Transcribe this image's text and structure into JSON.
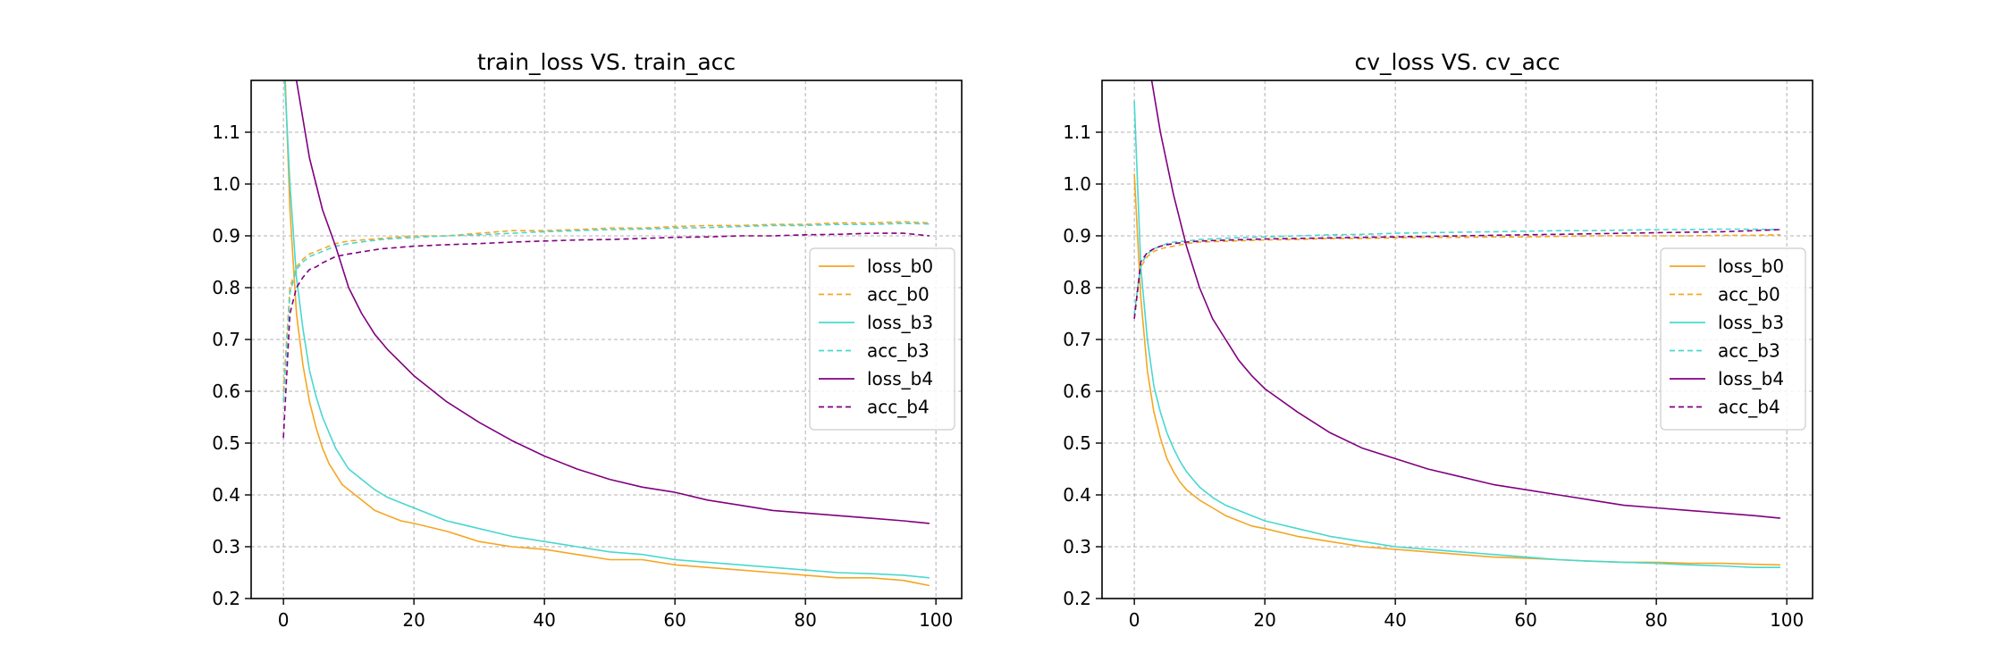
{
  "chart_data": [
    {
      "type": "line",
      "title": "train_loss VS. train_acc",
      "xlabel": "",
      "ylabel": "",
      "xlim": [
        -4.95,
        103.95
      ],
      "ylim": [
        0.2,
        1.2
      ],
      "xticks": [
        0,
        20,
        40,
        60,
        80,
        100
      ],
      "yticks": [
        0.2,
        0.3,
        0.4,
        0.5,
        0.6,
        0.7,
        0.8,
        0.9,
        1.0,
        1.1
      ],
      "xtick_labels": [
        "0",
        "20",
        "40",
        "60",
        "80",
        "100"
      ],
      "ytick_labels": [
        "0.2",
        "0.3",
        "0.4",
        "0.5",
        "0.6",
        "0.7",
        "0.8",
        "0.9",
        "1.0",
        "1.1"
      ],
      "grid": true,
      "legend_position": "center-right",
      "series": [
        {
          "name": "loss_b0",
          "color": "#f5a623",
          "style": "solid",
          "x": [
            0,
            1,
            2,
            3,
            4,
            5,
            6,
            7,
            8,
            9,
            10,
            12,
            14,
            16,
            18,
            20,
            25,
            30,
            35,
            40,
            45,
            50,
            55,
            60,
            65,
            70,
            75,
            80,
            85,
            90,
            95,
            99
          ],
          "values": [
            1.3,
            0.95,
            0.75,
            0.65,
            0.58,
            0.53,
            0.49,
            0.46,
            0.44,
            0.42,
            0.41,
            0.39,
            0.37,
            0.36,
            0.35,
            0.345,
            0.33,
            0.31,
            0.3,
            0.295,
            0.285,
            0.275,
            0.275,
            0.265,
            0.26,
            0.255,
            0.25,
            0.245,
            0.24,
            0.24,
            0.235,
            0.225
          ]
        },
        {
          "name": "acc_b0",
          "color": "#f5a623",
          "style": "dashed",
          "x": [
            0,
            1,
            2,
            3,
            4,
            5,
            6,
            8,
            10,
            15,
            20,
            25,
            30,
            35,
            40,
            45,
            50,
            55,
            60,
            65,
            70,
            75,
            80,
            85,
            90,
            95,
            99
          ],
          "values": [
            0.6,
            0.8,
            0.84,
            0.855,
            0.865,
            0.87,
            0.875,
            0.885,
            0.89,
            0.895,
            0.9,
            0.9,
            0.905,
            0.91,
            0.91,
            0.912,
            0.915,
            0.915,
            0.918,
            0.92,
            0.92,
            0.922,
            0.922,
            0.925,
            0.925,
            0.927,
            0.925
          ]
        },
        {
          "name": "loss_b3",
          "color": "#48d8cf",
          "style": "solid",
          "x": [
            0,
            1,
            2,
            3,
            4,
            5,
            6,
            7,
            8,
            9,
            10,
            12,
            14,
            16,
            18,
            20,
            25,
            30,
            35,
            40,
            45,
            50,
            55,
            60,
            65,
            70,
            75,
            80,
            85,
            90,
            95,
            99
          ],
          "values": [
            1.25,
            1.0,
            0.82,
            0.72,
            0.64,
            0.59,
            0.55,
            0.52,
            0.49,
            0.47,
            0.45,
            0.43,
            0.41,
            0.395,
            0.385,
            0.375,
            0.35,
            0.335,
            0.32,
            0.31,
            0.3,
            0.29,
            0.285,
            0.275,
            0.27,
            0.265,
            0.26,
            0.255,
            0.25,
            0.248,
            0.245,
            0.24
          ]
        },
        {
          "name": "acc_b3",
          "color": "#48d8cf",
          "style": "dashed",
          "x": [
            0,
            1,
            2,
            3,
            4,
            5,
            6,
            8,
            10,
            15,
            20,
            25,
            30,
            35,
            40,
            45,
            50,
            55,
            60,
            65,
            70,
            75,
            80,
            85,
            90,
            95,
            99
          ],
          "values": [
            0.58,
            0.79,
            0.835,
            0.85,
            0.86,
            0.865,
            0.87,
            0.88,
            0.885,
            0.893,
            0.897,
            0.9,
            0.902,
            0.905,
            0.908,
            0.91,
            0.912,
            0.913,
            0.915,
            0.916,
            0.918,
            0.92,
            0.92,
            0.922,
            0.922,
            0.924,
            0.923
          ]
        },
        {
          "name": "loss_b4",
          "color": "#800080",
          "style": "solid",
          "x": [
            0,
            2,
            4,
            6,
            8,
            10,
            12,
            14,
            16,
            18,
            20,
            25,
            30,
            35,
            40,
            45,
            50,
            55,
            60,
            65,
            70,
            75,
            80,
            85,
            90,
            95,
            99
          ],
          "values": [
            1.35,
            1.2,
            1.05,
            0.95,
            0.88,
            0.8,
            0.75,
            0.71,
            0.68,
            0.655,
            0.63,
            0.58,
            0.54,
            0.505,
            0.475,
            0.45,
            0.43,
            0.415,
            0.405,
            0.39,
            0.38,
            0.37,
            0.365,
            0.36,
            0.355,
            0.35,
            0.345
          ]
        },
        {
          "name": "acc_b4",
          "color": "#800080",
          "style": "dashed",
          "x": [
            0,
            1,
            2,
            3,
            4,
            5,
            6,
            8,
            10,
            15,
            20,
            25,
            30,
            35,
            40,
            45,
            50,
            55,
            60,
            65,
            70,
            75,
            80,
            85,
            90,
            95,
            99
          ],
          "values": [
            0.51,
            0.75,
            0.8,
            0.82,
            0.835,
            0.84,
            0.848,
            0.86,
            0.865,
            0.875,
            0.88,
            0.883,
            0.885,
            0.888,
            0.89,
            0.892,
            0.893,
            0.895,
            0.897,
            0.898,
            0.9,
            0.9,
            0.902,
            0.903,
            0.905,
            0.905,
            0.9
          ]
        }
      ]
    },
    {
      "type": "line",
      "title": "cv_loss VS. cv_acc",
      "xlabel": "",
      "ylabel": "",
      "xlim": [
        -4.95,
        103.95
      ],
      "ylim": [
        0.2,
        1.2
      ],
      "xticks": [
        0,
        20,
        40,
        60,
        80,
        100
      ],
      "yticks": [
        0.2,
        0.3,
        0.4,
        0.5,
        0.6,
        0.7,
        0.8,
        0.9,
        1.0,
        1.1
      ],
      "xtick_labels": [
        "0",
        "20",
        "40",
        "60",
        "80",
        "100"
      ],
      "ytick_labels": [
        "0.2",
        "0.3",
        "0.4",
        "0.5",
        "0.6",
        "0.7",
        "0.8",
        "0.9",
        "1.0",
        "1.1"
      ],
      "grid": true,
      "legend_position": "center-right",
      "series": [
        {
          "name": "loss_b0",
          "color": "#f5a623",
          "style": "solid",
          "x": [
            0,
            1,
            2,
            3,
            4,
            5,
            6,
            7,
            8,
            9,
            10,
            12,
            14,
            16,
            18,
            20,
            25,
            30,
            35,
            40,
            45,
            50,
            55,
            60,
            65,
            70,
            75,
            80,
            85,
            90,
            95,
            99
          ],
          "values": [
            1.02,
            0.78,
            0.64,
            0.56,
            0.51,
            0.47,
            0.445,
            0.425,
            0.41,
            0.4,
            0.39,
            0.375,
            0.36,
            0.35,
            0.34,
            0.335,
            0.32,
            0.31,
            0.3,
            0.295,
            0.29,
            0.285,
            0.28,
            0.278,
            0.275,
            0.272,
            0.27,
            0.27,
            0.268,
            0.268,
            0.266,
            0.265
          ]
        },
        {
          "name": "acc_b0",
          "color": "#f5a623",
          "style": "dashed",
          "x": [
            0,
            1,
            2,
            3,
            4,
            5,
            6,
            8,
            10,
            15,
            20,
            25,
            30,
            35,
            40,
            45,
            50,
            55,
            60,
            65,
            70,
            75,
            80,
            85,
            90,
            95,
            99
          ],
          "values": [
            0.74,
            0.84,
            0.86,
            0.87,
            0.875,
            0.878,
            0.88,
            0.885,
            0.888,
            0.89,
            0.892,
            0.893,
            0.895,
            0.895,
            0.896,
            0.897,
            0.897,
            0.898,
            0.898,
            0.899,
            0.9,
            0.9,
            0.9,
            0.9,
            0.901,
            0.901,
            0.902
          ]
        },
        {
          "name": "loss_b3",
          "color": "#48d8cf",
          "style": "solid",
          "x": [
            0,
            1,
            2,
            3,
            4,
            5,
            6,
            7,
            8,
            9,
            10,
            12,
            14,
            16,
            18,
            20,
            25,
            30,
            35,
            40,
            45,
            50,
            55,
            60,
            65,
            70,
            75,
            80,
            85,
            90,
            95,
            99
          ],
          "values": [
            1.16,
            0.84,
            0.7,
            0.61,
            0.56,
            0.52,
            0.49,
            0.465,
            0.445,
            0.43,
            0.415,
            0.395,
            0.38,
            0.37,
            0.36,
            0.35,
            0.335,
            0.32,
            0.31,
            0.3,
            0.295,
            0.29,
            0.285,
            0.28,
            0.275,
            0.272,
            0.27,
            0.268,
            0.265,
            0.263,
            0.26,
            0.26
          ]
        },
        {
          "name": "acc_b3",
          "color": "#48d8cf",
          "style": "dashed",
          "x": [
            0,
            1,
            2,
            3,
            4,
            5,
            6,
            8,
            10,
            15,
            20,
            25,
            30,
            35,
            40,
            45,
            50,
            55,
            60,
            65,
            70,
            75,
            80,
            85,
            90,
            95,
            99
          ],
          "values": [
            0.75,
            0.845,
            0.865,
            0.875,
            0.88,
            0.885,
            0.888,
            0.89,
            0.893,
            0.896,
            0.898,
            0.9,
            0.902,
            0.903,
            0.905,
            0.906,
            0.907,
            0.908,
            0.909,
            0.91,
            0.91,
            0.911,
            0.912,
            0.912,
            0.913,
            0.913,
            0.912
          ]
        },
        {
          "name": "loss_b4",
          "color": "#800080",
          "style": "solid",
          "x": [
            0,
            2,
            4,
            6,
            8,
            10,
            12,
            14,
            16,
            18,
            20,
            25,
            30,
            35,
            40,
            45,
            50,
            55,
            60,
            65,
            70,
            75,
            80,
            85,
            90,
            95,
            99
          ],
          "values": [
            1.4,
            1.25,
            1.1,
            0.98,
            0.88,
            0.8,
            0.74,
            0.7,
            0.66,
            0.63,
            0.605,
            0.56,
            0.52,
            0.49,
            0.47,
            0.45,
            0.435,
            0.42,
            0.41,
            0.4,
            0.39,
            0.38,
            0.375,
            0.37,
            0.365,
            0.36,
            0.355
          ]
        },
        {
          "name": "acc_b4",
          "color": "#800080",
          "style": "dashed",
          "x": [
            0,
            1,
            2,
            3,
            4,
            5,
            6,
            8,
            10,
            15,
            20,
            25,
            30,
            35,
            40,
            45,
            50,
            55,
            60,
            65,
            70,
            75,
            80,
            85,
            90,
            95,
            99
          ],
          "values": [
            0.74,
            0.85,
            0.868,
            0.875,
            0.88,
            0.883,
            0.885,
            0.888,
            0.89,
            0.892,
            0.894,
            0.895,
            0.896,
            0.897,
            0.898,
            0.899,
            0.9,
            0.901,
            0.902,
            0.903,
            0.904,
            0.905,
            0.906,
            0.907,
            0.908,
            0.91,
            0.912
          ]
        }
      ]
    }
  ]
}
